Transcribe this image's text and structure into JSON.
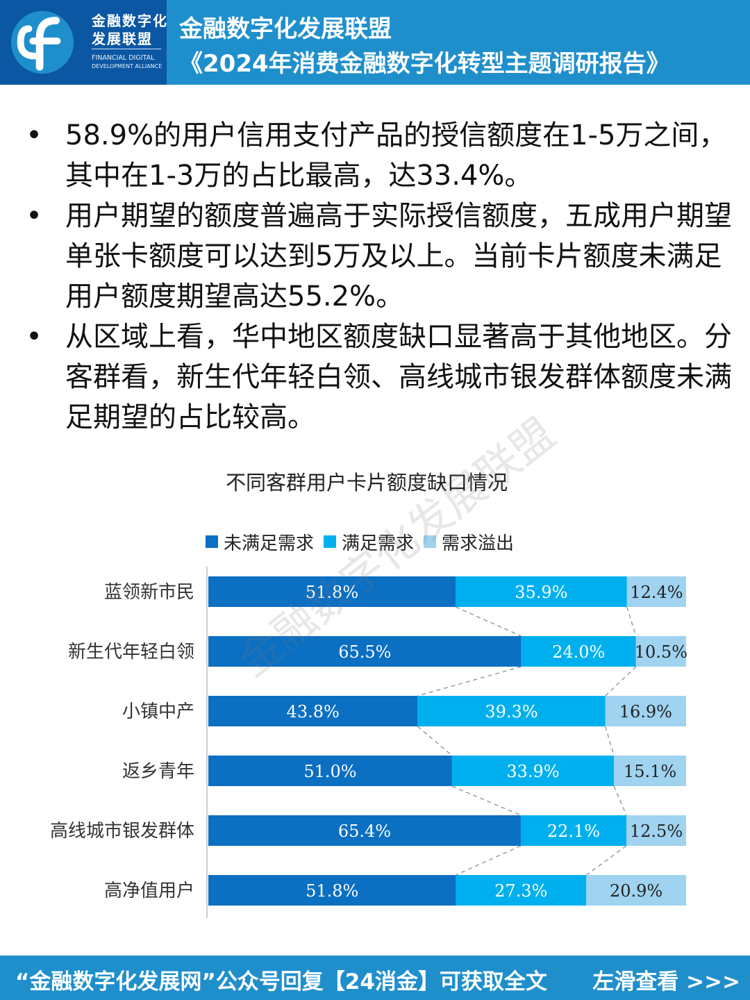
{
  "header": {
    "logo_cn_line1": "金融数字化",
    "logo_cn_line2": "发展联盟",
    "logo_en_line1": "FINANCIAL DIGITAL",
    "logo_en_line2": "DEVELOPMENT ALLIANCE",
    "title_line1": "金融数字化发展联盟",
    "title_line2": "《2024年消费金融数字化转型主题调研报告》",
    "brand_color": "#1f8fcc",
    "logo_bg_color": "#0b57a3"
  },
  "bullets": [
    "58.9%的用户信用支付产品的授信额度在1-5万之间，其中在1-3万的占比最高，达33.4%。",
    "用户期望的额度普遍高于实际授信额度，五成用户期望单张卡额度可以达到5万及以上。当前卡片额度未满足用户额度期望高达55.2%。",
    "从区域上看，华中地区额度缺口显著高于其他地区。分客群看，新生代年轻白领、高线城市银发群体额度未满足期望的占比较高。"
  ],
  "bullet_symbol": "•",
  "watermark": "金融数字化发展联盟",
  "chart_data": {
    "type": "bar",
    "orientation": "horizontal",
    "stacked": true,
    "percent_stacked": true,
    "title": "不同客群用户卡片额度缺口情况",
    "legend_position": "top",
    "grid": false,
    "categories": [
      "蓝领新市民",
      "新生代年轻白领",
      "小镇中产",
      "返乡青年",
      "高线城市银发群体",
      "高净值用户"
    ],
    "series": [
      {
        "name": "未满足需求",
        "color": "#0b6fc2",
        "values": [
          51.8,
          65.5,
          43.8,
          51.0,
          65.4,
          51.8
        ]
      },
      {
        "name": "满足需求",
        "color": "#00b0ee",
        "values": [
          35.9,
          24.0,
          39.3,
          33.9,
          22.1,
          27.3
        ]
      },
      {
        "name": "需求溢出",
        "color": "#9fd3ef",
        "values": [
          12.4,
          10.5,
          16.9,
          15.1,
          12.5,
          20.9
        ]
      }
    ],
    "labels": [
      [
        "51.8%",
        "35.9%",
        "12.4%"
      ],
      [
        "65.5%",
        "24.0%",
        "10.5%"
      ],
      [
        "43.8%",
        "39.3%",
        "16.9%"
      ],
      [
        "51.0%",
        "33.9%",
        "15.1%"
      ],
      [
        "65.4%",
        "22.1%",
        "12.5%"
      ],
      [
        "51.8%",
        "27.3%",
        "20.9%"
      ]
    ]
  },
  "footer": {
    "text": "“金融数字化发展网”公众号回复【24消金】可获取全文",
    "swipe_label": "左滑查看 >>>"
  }
}
